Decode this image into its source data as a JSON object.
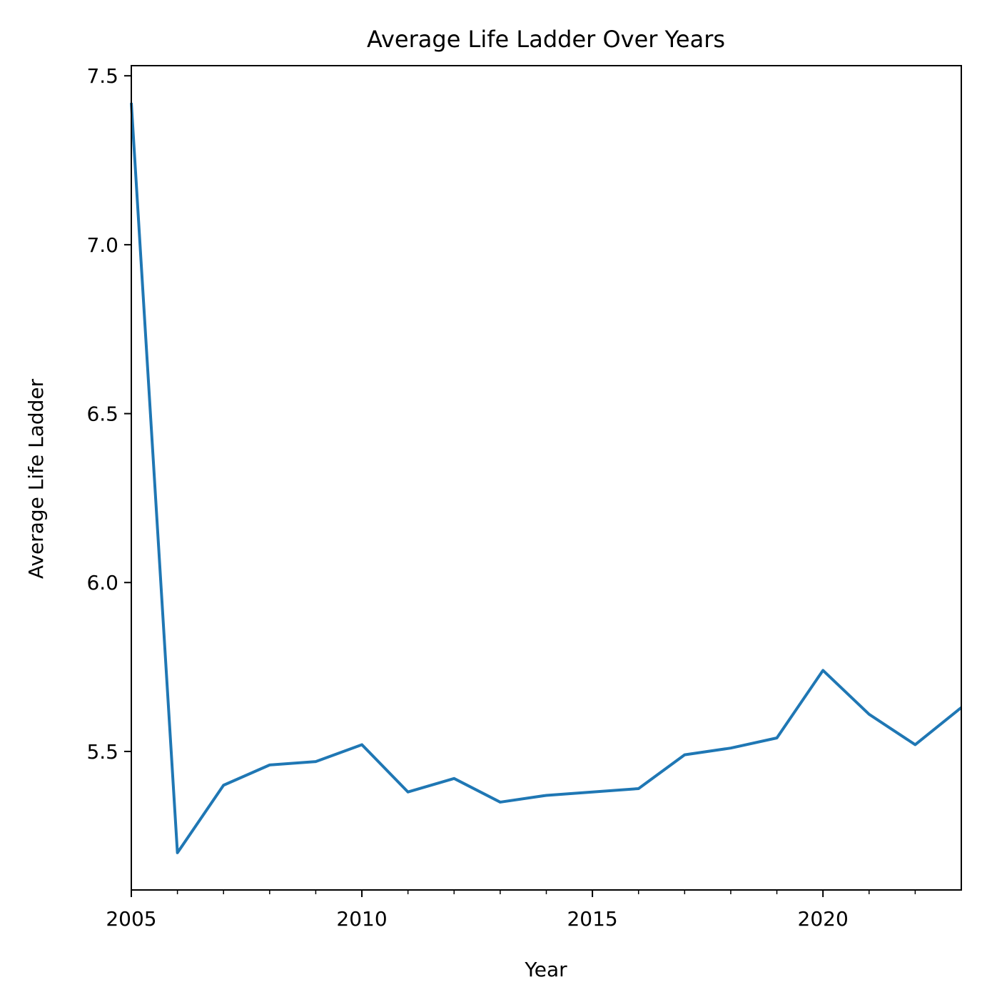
{
  "chart_data": {
    "type": "line",
    "title": "Average Life Ladder Over Years",
    "xlabel": "Year",
    "ylabel": "Average Life Ladder",
    "xlim": [
      2005,
      2023
    ],
    "ylim": [
      5.09,
      7.53
    ],
    "x_ticks": [
      2005,
      2010,
      2015,
      2020
    ],
    "x_tick_labels": [
      "2005",
      "2010",
      "2015",
      "2020"
    ],
    "x_minor_ticks": [
      2006,
      2007,
      2008,
      2009,
      2011,
      2012,
      2013,
      2014,
      2016,
      2017,
      2018,
      2019,
      2021,
      2022
    ],
    "y_ticks": [
      5.5,
      6.0,
      6.5,
      7.0,
      7.5
    ],
    "y_tick_labels": [
      "5.5",
      "6.0",
      "6.5",
      "7.0",
      "7.5"
    ],
    "grid": false,
    "legend": "none",
    "line_color": "#1f77b4",
    "x": [
      2005,
      2006,
      2007,
      2008,
      2009,
      2010,
      2011,
      2012,
      2013,
      2014,
      2015,
      2016,
      2017,
      2018,
      2019,
      2020,
      2021,
      2022,
      2023
    ],
    "series": [
      {
        "values": [
          7.42,
          5.2,
          5.4,
          5.46,
          5.47,
          5.52,
          5.38,
          5.42,
          5.35,
          5.37,
          5.38,
          5.39,
          5.49,
          5.51,
          5.54,
          5.74,
          5.61,
          5.52,
          5.63
        ]
      }
    ]
  }
}
